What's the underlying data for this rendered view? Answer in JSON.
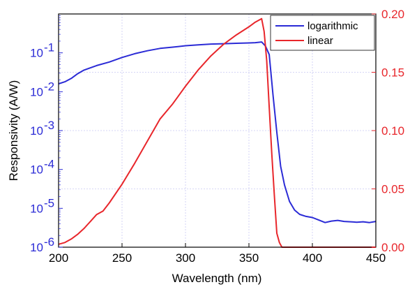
{
  "chart_data": {
    "type": "line",
    "xlabel": "Wavelength (nm)",
    "ylabel": "Responsivity (A/W)",
    "xlim": [
      200,
      450
    ],
    "x_ticks": [
      200,
      250,
      300,
      350,
      400,
      450
    ],
    "x_tick_labels": [
      "200",
      "250",
      "300",
      "350",
      "400",
      "450"
    ],
    "y_left": {
      "scale": "log",
      "lim": [
        1e-06,
        1
      ],
      "tick_mantissa": "10",
      "ticks": [
        {
          "value": 0.1,
          "exp": "-1"
        },
        {
          "value": 0.01,
          "exp": "-2"
        },
        {
          "value": 0.001,
          "exp": "-3"
        },
        {
          "value": 0.0001,
          "exp": "-4"
        },
        {
          "value": 1e-05,
          "exp": "-5"
        },
        {
          "value": 1e-06,
          "exp": "-6"
        }
      ],
      "color": "#2b2bd6"
    },
    "y_right": {
      "scale": "linear",
      "lim": [
        0,
        0.2
      ],
      "ticks": [
        0.0,
        0.05,
        0.1,
        0.15,
        0.2
      ],
      "tick_labels": [
        "0.00",
        "0.05",
        "0.10",
        "0.15",
        "0.20"
      ],
      "color": "#e8262b"
    },
    "grid": true,
    "legend": "top-right",
    "series": [
      {
        "name": "logarithmic",
        "axis": "left",
        "color": "#2b2bd6",
        "x": [
          200,
          205,
          210,
          215,
          220,
          230,
          240,
          250,
          260,
          270,
          280,
          290,
          300,
          310,
          320,
          330,
          340,
          350,
          355,
          360,
          363,
          366,
          369,
          372,
          375,
          378,
          382,
          386,
          390,
          395,
          400,
          405,
          410,
          415,
          420,
          425,
          430,
          435,
          440,
          445,
          450
        ],
        "y": [
          0.016,
          0.018,
          0.022,
          0.029,
          0.036,
          0.047,
          0.058,
          0.076,
          0.095,
          0.113,
          0.13,
          0.14,
          0.152,
          0.16,
          0.168,
          0.172,
          0.176,
          0.18,
          0.183,
          0.19,
          0.15,
          0.09,
          0.008,
          0.0009,
          0.00012,
          4e-05,
          1.5e-05,
          9e-06,
          7e-06,
          6.2e-06,
          5.8e-06,
          5e-06,
          4.3e-06,
          4.7e-06,
          4.9e-06,
          4.6e-06,
          4.5e-06,
          4.4e-06,
          4.5e-06,
          4.3e-06,
          4.6e-06
        ]
      },
      {
        "name": "linear",
        "axis": "right",
        "color": "#e8262b",
        "x": [
          200,
          205,
          210,
          215,
          220,
          225,
          230,
          235,
          240,
          250,
          260,
          270,
          280,
          290,
          300,
          310,
          320,
          330,
          340,
          350,
          355,
          360,
          362,
          364,
          366,
          368,
          370,
          372,
          374,
          376,
          380,
          390,
          400,
          410,
          420,
          430,
          440,
          450
        ],
        "y": [
          0.0025,
          0.004,
          0.007,
          0.011,
          0.016,
          0.022,
          0.028,
          0.031,
          0.038,
          0.054,
          0.072,
          0.091,
          0.11,
          0.123,
          0.138,
          0.152,
          0.164,
          0.174,
          0.182,
          0.189,
          0.193,
          0.196,
          0.185,
          0.16,
          0.12,
          0.08,
          0.045,
          0.012,
          0.004,
          0.0,
          0.0,
          0.0,
          0.0,
          0.0,
          0.0,
          0.0,
          0.0,
          0.0
        ]
      }
    ]
  }
}
